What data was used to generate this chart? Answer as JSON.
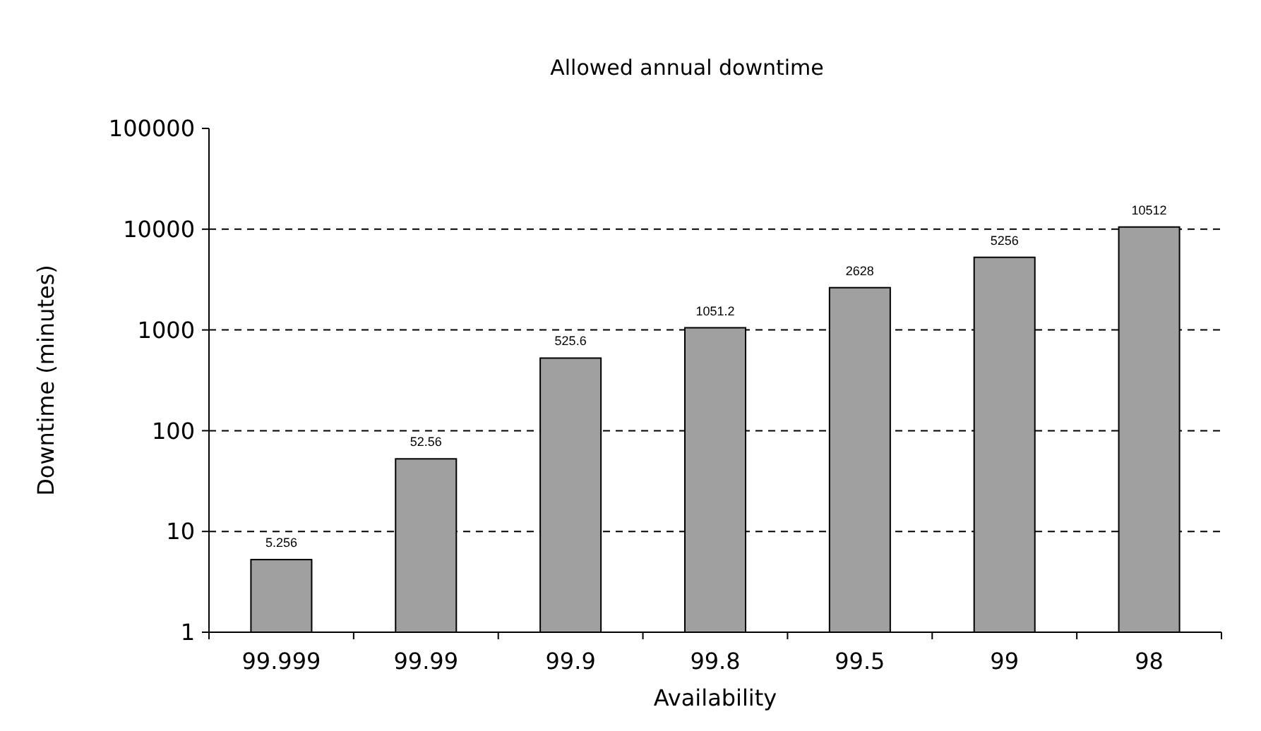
{
  "chart_data": {
    "type": "bar",
    "title": "Allowed annual downtime",
    "xlabel": "Availability",
    "ylabel": "Downtime (minutes)",
    "categories": [
      "99.999",
      "99.99",
      "99.9",
      "99.8",
      "99.5",
      "99",
      "98"
    ],
    "values": [
      5.256,
      52.56,
      525.6,
      1051.2,
      2628,
      5256,
      10512
    ],
    "color": "#a0a0a0",
    "ylim": [
      1,
      100000
    ],
    "yticks": [
      1,
      10,
      100,
      1000,
      10000,
      100000
    ],
    "log": true,
    "grid": "y",
    "data_labels": true
  }
}
